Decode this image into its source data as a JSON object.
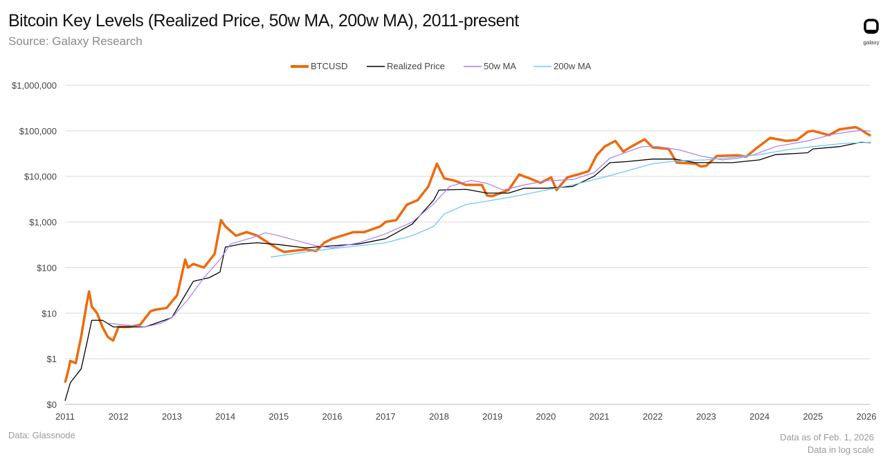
{
  "header": {
    "title": "Bitcoin Key Levels (Realized Price, 50w MA, 200w MA), 2011-present",
    "subtitle": "Source: Galaxy Research",
    "logo_text": "galaxy"
  },
  "footer": {
    "source": "Data: Glassnode",
    "asof": "Data as of Feb. 1, 2026",
    "note": "Data in log scale"
  },
  "chart_data": {
    "type": "line",
    "title": "Bitcoin Key Levels (Realized Price, 50w MA, 200w MA), 2011-present",
    "xlabel": "",
    "ylabel": "",
    "yscale": "log",
    "ylim": [
      0.1,
      1000000
    ],
    "xlim": [
      2011,
      2026.1
    ],
    "grid": true,
    "legend_position": "top",
    "y_ticks": [
      {
        "v": 1000000,
        "label": "$1,000,000"
      },
      {
        "v": 100000,
        "label": "$100,000"
      },
      {
        "v": 10000,
        "label": "$10,000"
      },
      {
        "v": 1000,
        "label": "$1,000"
      },
      {
        "v": 100,
        "label": "$100"
      },
      {
        "v": 10,
        "label": "$10"
      },
      {
        "v": 1,
        "label": "$1"
      },
      {
        "v": 0.1,
        "label": "$0"
      }
    ],
    "x_ticks": [
      "2011",
      "2012",
      "2013",
      "2014",
      "2015",
      "2016",
      "2017",
      "2018",
      "2019",
      "2020",
      "2021",
      "2022",
      "2023",
      "2024",
      "2025",
      "2026"
    ],
    "series": [
      {
        "name": "BTCUSD",
        "color": "#ED6A0C",
        "points": [
          [
            2011.0,
            0.3
          ],
          [
            2011.05,
            0.5
          ],
          [
            2011.1,
            0.9
          ],
          [
            2011.2,
            0.8
          ],
          [
            2011.3,
            3
          ],
          [
            2011.4,
            15
          ],
          [
            2011.45,
            30
          ],
          [
            2011.5,
            14
          ],
          [
            2011.6,
            10
          ],
          [
            2011.7,
            5
          ],
          [
            2011.8,
            3
          ],
          [
            2011.9,
            2.5
          ],
          [
            2012.0,
            5
          ],
          [
            2012.2,
            5
          ],
          [
            2012.4,
            5.5
          ],
          [
            2012.6,
            11
          ],
          [
            2012.7,
            12
          ],
          [
            2012.9,
            13
          ],
          [
            2013.1,
            25
          ],
          [
            2013.25,
            150
          ],
          [
            2013.3,
            100
          ],
          [
            2013.4,
            120
          ],
          [
            2013.6,
            100
          ],
          [
            2013.8,
            200
          ],
          [
            2013.92,
            1100
          ],
          [
            2014.0,
            800
          ],
          [
            2014.2,
            500
          ],
          [
            2014.4,
            600
          ],
          [
            2014.6,
            500
          ],
          [
            2014.8,
            350
          ],
          [
            2015.0,
            250
          ],
          [
            2015.1,
            220
          ],
          [
            2015.5,
            250
          ],
          [
            2015.7,
            230
          ],
          [
            2015.85,
            350
          ],
          [
            2016.0,
            430
          ],
          [
            2016.4,
            600
          ],
          [
            2016.6,
            600
          ],
          [
            2016.9,
            800
          ],
          [
            2017.0,
            1000
          ],
          [
            2017.2,
            1100
          ],
          [
            2017.4,
            2400
          ],
          [
            2017.6,
            3000
          ],
          [
            2017.8,
            6000
          ],
          [
            2017.96,
            19000
          ],
          [
            2018.1,
            9000
          ],
          [
            2018.3,
            8000
          ],
          [
            2018.5,
            6500
          ],
          [
            2018.8,
            6500
          ],
          [
            2018.9,
            3800
          ],
          [
            2019.0,
            3700
          ],
          [
            2019.3,
            5000
          ],
          [
            2019.5,
            11000
          ],
          [
            2019.7,
            9000
          ],
          [
            2019.9,
            7200
          ],
          [
            2020.1,
            9500
          ],
          [
            2020.2,
            5000
          ],
          [
            2020.4,
            9500
          ],
          [
            2020.6,
            11000
          ],
          [
            2020.8,
            13000
          ],
          [
            2020.95,
            29000
          ],
          [
            2021.1,
            45000
          ],
          [
            2021.3,
            60000
          ],
          [
            2021.45,
            35000
          ],
          [
            2021.6,
            45000
          ],
          [
            2021.85,
            65000
          ],
          [
            2022.0,
            43000
          ],
          [
            2022.3,
            40000
          ],
          [
            2022.45,
            20000
          ],
          [
            2022.8,
            19000
          ],
          [
            2022.9,
            16500
          ],
          [
            2023.0,
            17000
          ],
          [
            2023.2,
            28000
          ],
          [
            2023.6,
            29000
          ],
          [
            2023.75,
            27000
          ],
          [
            2023.95,
            42000
          ],
          [
            2024.2,
            70000
          ],
          [
            2024.5,
            60000
          ],
          [
            2024.7,
            63000
          ],
          [
            2024.9,
            95000
          ],
          [
            2025.0,
            100000
          ],
          [
            2025.3,
            80000
          ],
          [
            2025.5,
            108000
          ],
          [
            2025.8,
            120000
          ],
          [
            2025.9,
            105000
          ],
          [
            2026.0,
            88000
          ],
          [
            2026.08,
            78000
          ]
        ]
      },
      {
        "name": "Realized Price",
        "color": "#000000",
        "points": [
          [
            2011.0,
            0.12
          ],
          [
            2011.1,
            0.3
          ],
          [
            2011.3,
            0.6
          ],
          [
            2011.4,
            2
          ],
          [
            2011.5,
            7
          ],
          [
            2011.7,
            7
          ],
          [
            2011.9,
            5
          ],
          [
            2012.5,
            5
          ],
          [
            2013.0,
            8
          ],
          [
            2013.2,
            20
          ],
          [
            2013.4,
            50
          ],
          [
            2013.7,
            60
          ],
          [
            2013.9,
            80
          ],
          [
            2014.0,
            280
          ],
          [
            2014.3,
            330
          ],
          [
            2014.6,
            350
          ],
          [
            2015.0,
            320
          ],
          [
            2015.5,
            270
          ],
          [
            2016.0,
            300
          ],
          [
            2016.5,
            330
          ],
          [
            2017.0,
            430
          ],
          [
            2017.5,
            900
          ],
          [
            2017.9,
            3000
          ],
          [
            2018.0,
            5000
          ],
          [
            2018.5,
            5200
          ],
          [
            2018.9,
            4300
          ],
          [
            2019.3,
            4300
          ],
          [
            2019.6,
            5500
          ],
          [
            2020.0,
            5500
          ],
          [
            2020.5,
            6000
          ],
          [
            2020.9,
            10000
          ],
          [
            2021.2,
            20000
          ],
          [
            2021.5,
            21000
          ],
          [
            2022.0,
            24000
          ],
          [
            2022.4,
            24000
          ],
          [
            2022.8,
            20000
          ],
          [
            2023.5,
            20000
          ],
          [
            2024.0,
            23000
          ],
          [
            2024.3,
            30000
          ],
          [
            2024.9,
            33000
          ],
          [
            2025.0,
            40000
          ],
          [
            2025.5,
            45000
          ],
          [
            2025.9,
            56000
          ],
          [
            2026.08,
            55000
          ]
        ]
      },
      {
        "name": "50w MA",
        "color": "#A97CF8",
        "points": [
          [
            2011.8,
            6
          ],
          [
            2012.5,
            5
          ],
          [
            2012.8,
            6
          ],
          [
            2013.0,
            8
          ],
          [
            2013.3,
            20
          ],
          [
            2013.6,
            60
          ],
          [
            2013.9,
            150
          ],
          [
            2014.1,
            330
          ],
          [
            2014.5,
            450
          ],
          [
            2014.75,
            580
          ],
          [
            2015.0,
            500
          ],
          [
            2015.3,
            400
          ],
          [
            2015.7,
            300
          ],
          [
            2016.0,
            270
          ],
          [
            2016.5,
            350
          ],
          [
            2017.0,
            550
          ],
          [
            2017.5,
            1000
          ],
          [
            2017.9,
            2500
          ],
          [
            2018.2,
            6000
          ],
          [
            2018.6,
            8200
          ],
          [
            2018.9,
            7000
          ],
          [
            2019.2,
            5000
          ],
          [
            2019.6,
            6500
          ],
          [
            2020.0,
            8000
          ],
          [
            2020.5,
            8500
          ],
          [
            2020.9,
            12000
          ],
          [
            2021.2,
            25000
          ],
          [
            2021.8,
            45000
          ],
          [
            2022.1,
            45000
          ],
          [
            2022.5,
            38000
          ],
          [
            2022.9,
            28000
          ],
          [
            2023.3,
            23000
          ],
          [
            2023.6,
            25000
          ],
          [
            2023.9,
            30000
          ],
          [
            2024.3,
            45000
          ],
          [
            2024.9,
            60000
          ],
          [
            2025.4,
            85000
          ],
          [
            2025.9,
            102000
          ],
          [
            2026.08,
            98000
          ]
        ]
      },
      {
        "name": "200w MA",
        "color": "#6CC8F5",
        "points": [
          [
            2014.85,
            170
          ],
          [
            2015.5,
            220
          ],
          [
            2016.0,
            260
          ],
          [
            2016.5,
            300
          ],
          [
            2017.0,
            350
          ],
          [
            2017.5,
            500
          ],
          [
            2017.9,
            800
          ],
          [
            2018.1,
            1500
          ],
          [
            2018.5,
            2400
          ],
          [
            2019.0,
            3000
          ],
          [
            2019.5,
            3800
          ],
          [
            2020.0,
            5000
          ],
          [
            2020.5,
            6500
          ],
          [
            2021.0,
            9000
          ],
          [
            2021.5,
            13000
          ],
          [
            2022.0,
            19000
          ],
          [
            2022.5,
            22000
          ],
          [
            2023.0,
            23000
          ],
          [
            2023.5,
            26000
          ],
          [
            2024.0,
            30000
          ],
          [
            2024.5,
            38000
          ],
          [
            2025.0,
            45000
          ],
          [
            2025.5,
            52000
          ],
          [
            2026.08,
            56000
          ]
        ]
      }
    ]
  }
}
